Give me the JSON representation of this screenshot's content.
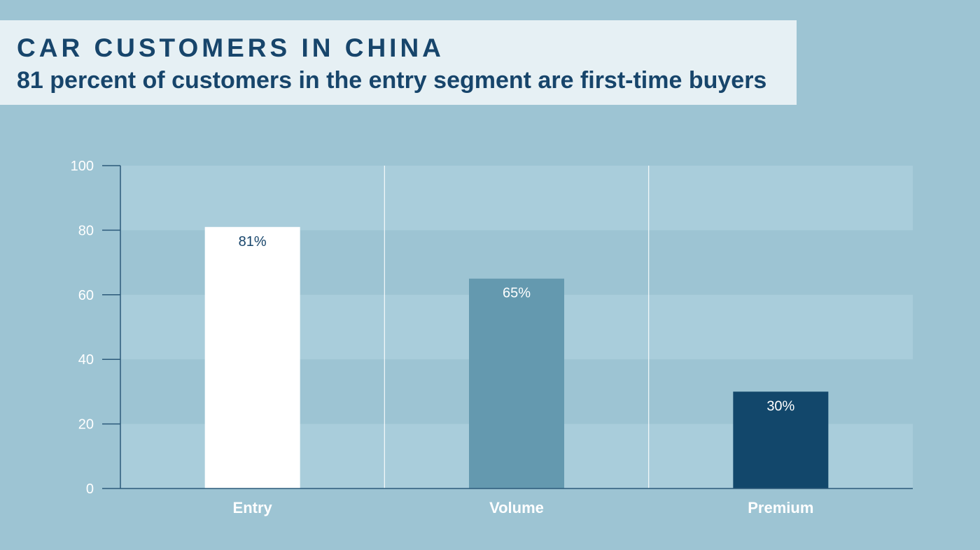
{
  "header": {
    "title": "CAR CUSTOMERS IN CHINA",
    "subtitle": "81 percent of customers in the entry segment are first-time buyers"
  },
  "chart_data": {
    "type": "bar",
    "title": "CAR CUSTOMERS IN CHINA",
    "subtitle": "81 percent of customers in the entry segment are first-time buyers",
    "categories": [
      "Entry",
      "Volume",
      "Premium"
    ],
    "values": [
      81,
      65,
      30
    ],
    "value_labels": [
      "81%",
      "65%",
      "30%"
    ],
    "bar_colors": [
      "#ffffff",
      "#6499af",
      "#12476b"
    ],
    "value_label_colors": [
      "#17456b",
      "#ffffff",
      "#ffffff"
    ],
    "ylim": [
      0,
      100
    ],
    "yticks": [
      0,
      20,
      40,
      60,
      80,
      100
    ],
    "xlabel": "",
    "ylabel": "",
    "grid": "alternating horizontal bands",
    "legend": "none",
    "colors": {
      "background": "#9dc4d3",
      "band_light": "#a9cddb",
      "axis": "#2c5a7a",
      "title": "#17456b",
      "title_box": "#e6f0f4"
    }
  }
}
